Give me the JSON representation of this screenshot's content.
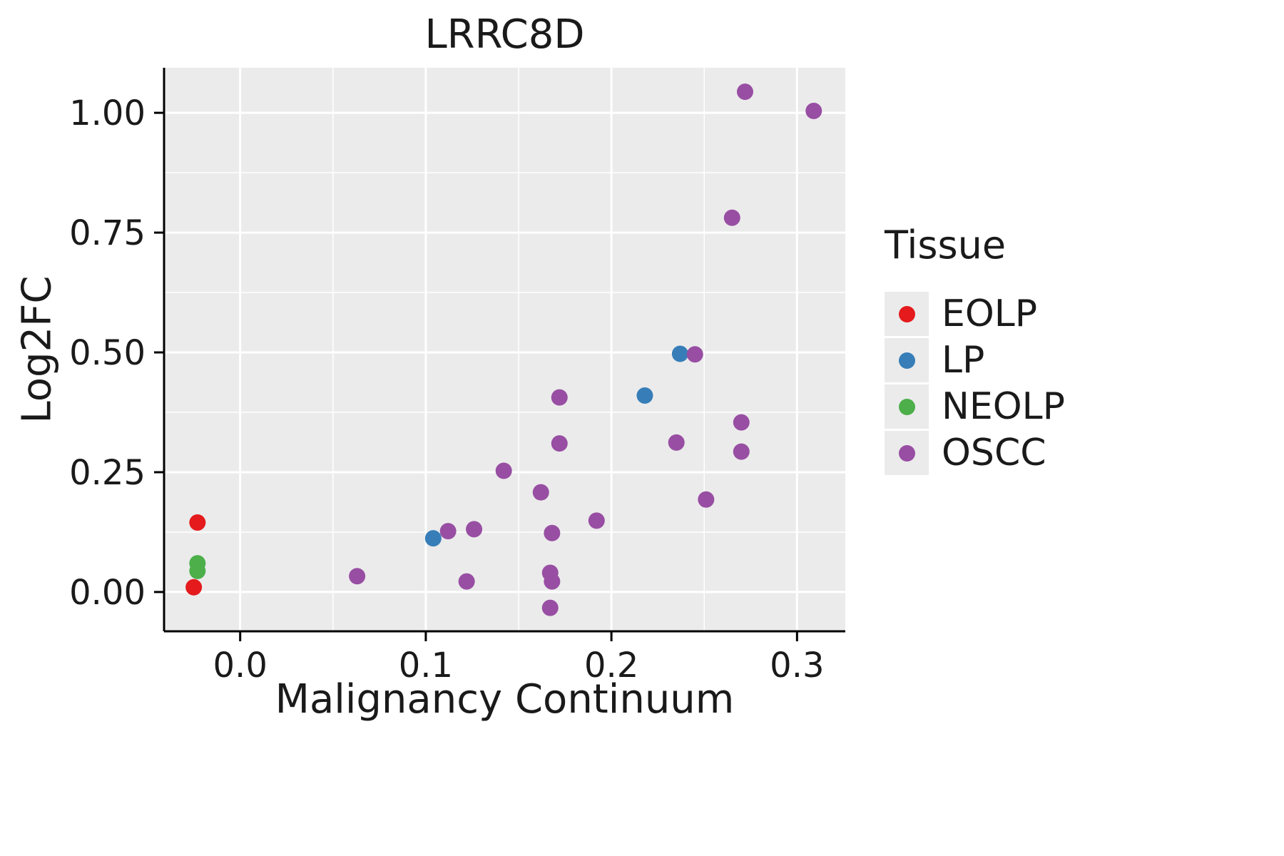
{
  "title": "LRRC8D",
  "axes": {
    "x_label": "Malignancy Continuum",
    "y_label": "Log2FC"
  },
  "legend": {
    "title": "Tissue",
    "items": [
      {
        "label": "EOLP",
        "color": "#e41a1c"
      },
      {
        "label": "LP",
        "color": "#377eb8"
      },
      {
        "label": "NEOLP",
        "color": "#4daf4a"
      },
      {
        "label": "OSCC",
        "color": "#984ea3"
      }
    ]
  },
  "chart_data": {
    "type": "scatter",
    "title": "LRRC8D",
    "xlabel": "Malignancy Continuum",
    "ylabel": "Log2FC",
    "xlim": [
      -0.041,
      0.326
    ],
    "ylim": [
      -0.082,
      1.094
    ],
    "x_ticks": [
      0.0,
      0.1,
      0.2,
      0.3
    ],
    "x_tick_labels": [
      "0.0",
      "0.1",
      "0.2",
      "0.3"
    ],
    "y_ticks": [
      0.0,
      0.25,
      0.5,
      0.75,
      1.0
    ],
    "y_tick_labels": [
      "0.00",
      "0.25",
      "0.50",
      "0.75",
      "1.00"
    ],
    "x_minor_ticks": [
      0.05,
      0.15,
      0.25
    ],
    "y_minor_ticks": [
      0.125,
      0.375,
      0.625,
      0.875
    ],
    "panel_bg": "#ebebeb",
    "grid_color": "#ffffff",
    "legend_position": "right",
    "grid": true,
    "point_radius": 11.5,
    "series": [
      {
        "name": "EOLP",
        "color": "#e41a1c",
        "points": [
          [
            -0.023,
            0.145
          ],
          [
            -0.025,
            0.01
          ]
        ]
      },
      {
        "name": "LP",
        "color": "#377eb8",
        "points": [
          [
            0.104,
            0.112
          ],
          [
            0.218,
            0.41
          ],
          [
            0.237,
            0.497
          ]
        ]
      },
      {
        "name": "NEOLP",
        "color": "#4daf4a",
        "points": [
          [
            -0.023,
            0.06
          ],
          [
            -0.023,
            0.044
          ]
        ]
      },
      {
        "name": "OSCC",
        "color": "#984ea3",
        "points": [
          [
            0.063,
            0.033
          ],
          [
            0.112,
            0.127
          ],
          [
            0.122,
            0.022
          ],
          [
            0.126,
            0.131
          ],
          [
            0.142,
            0.253
          ],
          [
            0.162,
            0.208
          ],
          [
            0.167,
            0.04
          ],
          [
            0.168,
            0.022
          ],
          [
            0.167,
            -0.033
          ],
          [
            0.168,
            0.123
          ],
          [
            0.172,
            0.31
          ],
          [
            0.172,
            0.406
          ],
          [
            0.192,
            0.149
          ],
          [
            0.235,
            0.312
          ],
          [
            0.245,
            0.496
          ],
          [
            0.251,
            0.193
          ],
          [
            0.265,
            0.781
          ],
          [
            0.272,
            1.044
          ],
          [
            0.27,
            0.354
          ],
          [
            0.27,
            0.293
          ],
          [
            0.309,
            1.004
          ]
        ]
      }
    ]
  }
}
